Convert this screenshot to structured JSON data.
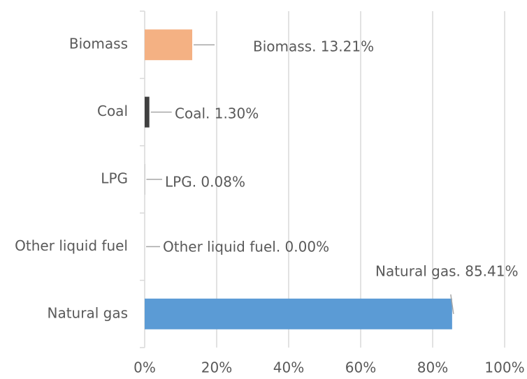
{
  "chart_data": {
    "type": "bar",
    "orientation": "horizontal",
    "categories": [
      "Biomass",
      "Coal",
      "LPG",
      "Other liquid fuel",
      "Natural gas"
    ],
    "values": [
      13.21,
      1.3,
      0.08,
      0.0,
      85.41
    ],
    "value_labels": [
      "Biomass. 13.21%",
      "Coal. 1.30%",
      "LPG. 0.08%",
      "Other liquid fuel. 0.00%",
      "Natural gas. 85.41%"
    ],
    "colors": [
      "#f4b183",
      "#404040",
      "#a5a5a5",
      "#ffc000",
      "#5b9bd5"
    ],
    "xlim": [
      0,
      100
    ],
    "xticks": [
      {
        "value": 0,
        "label": "0%"
      },
      {
        "value": 20,
        "label": "20%"
      },
      {
        "value": 40,
        "label": "40%"
      },
      {
        "value": 60,
        "label": "60%"
      },
      {
        "value": 80,
        "label": "80%"
      },
      {
        "value": 100,
        "label": "100%"
      }
    ],
    "grid": true
  }
}
